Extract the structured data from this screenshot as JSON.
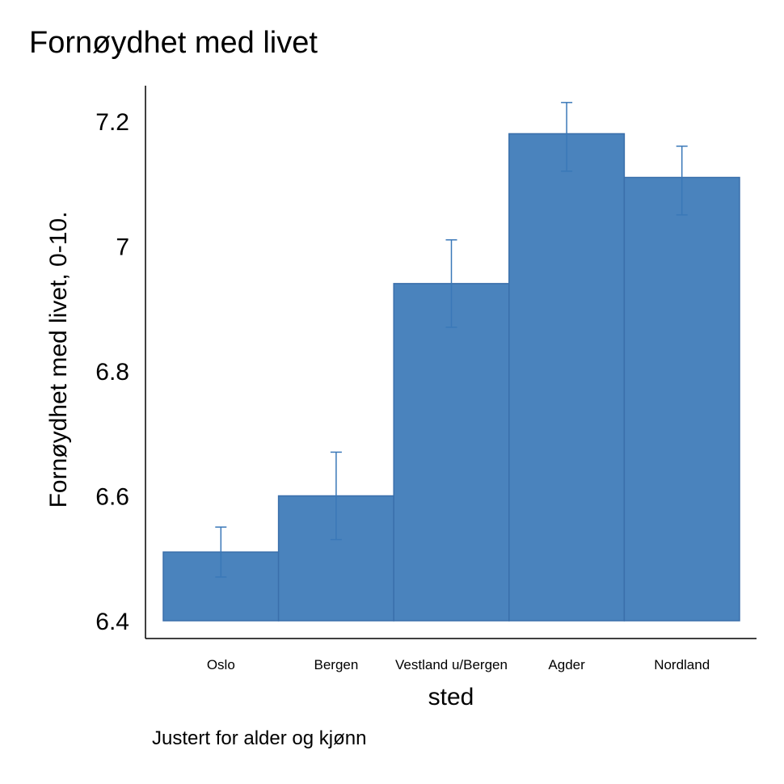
{
  "chart_data": {
    "type": "bar",
    "title": "Fornøydhet med livet",
    "xlabel": "sted",
    "ylabel": "Fornøydhet med livet, 0-10.",
    "note": "Justert for alder og kjønn",
    "categories": [
      "Oslo",
      "Bergen",
      "Vestland u/Bergen",
      "Agder",
      "Nordland"
    ],
    "values": [
      6.51,
      6.6,
      6.94,
      7.18,
      7.11
    ],
    "error_low": [
      6.47,
      6.53,
      6.87,
      7.12,
      7.05
    ],
    "error_high": [
      6.55,
      6.67,
      7.01,
      7.23,
      7.16
    ],
    "ylim": [
      6.4,
      7.25
    ],
    "yticks": [
      6.4,
      6.6,
      6.8,
      7,
      7.2
    ],
    "ytick_labels": [
      "6.4",
      "6.6",
      "6.8",
      "7",
      "7.2"
    ],
    "bar_color": "#4a83bd",
    "bar_edge_color": "#3a6fab",
    "error_color": "#3a78b8",
    "grid": false
  }
}
